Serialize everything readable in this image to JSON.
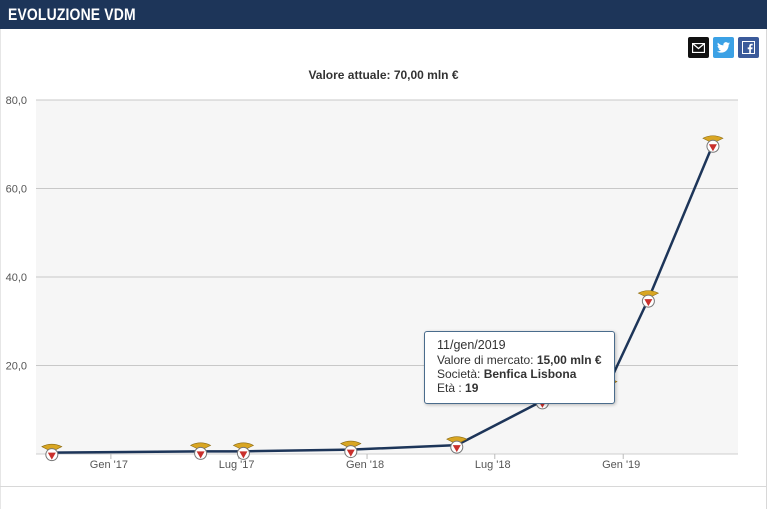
{
  "header": {
    "title": "EVOLUZIONE VDM"
  },
  "share": {
    "mail_icon": "envelope-icon",
    "twitter_icon": "twitter-icon",
    "facebook_icon": "facebook-icon"
  },
  "chart_data": {
    "type": "line",
    "title": "Valore attuale: 70,00 mln €",
    "xlabel": "",
    "ylabel": "",
    "ylim": [
      0,
      80
    ],
    "yticks": [
      "80,0",
      "60,0",
      "40,0",
      "20,0"
    ],
    "xticks": [
      "Gen '17",
      "Lug '17",
      "Gen '18",
      "Lug '18",
      "Gen '19"
    ],
    "grid": true,
    "line_color": "#1d3559",
    "points": [
      {
        "x": "2016-11",
        "y": 0.3
      },
      {
        "x": "2017-06",
        "y": 0.6
      },
      {
        "x": "2017-08",
        "y": 0.6
      },
      {
        "x": "2018-01",
        "y": 1.0
      },
      {
        "x": "2018-06",
        "y": 2.0
      },
      {
        "x": "2018-10",
        "y": 12.0
      },
      {
        "x": "2019-01",
        "y": 15.0
      },
      {
        "x": "2019-03",
        "y": 35.0
      },
      {
        "x": "2019-06",
        "y": 70.0
      }
    ]
  },
  "tooltip": {
    "date": "11/gen/2019",
    "value_label": "Valore di mercato: ",
    "value": "15,00 mln €",
    "club_label": "Società: ",
    "club": "Benfica Lisbona",
    "age_label": "Età : ",
    "age": "19"
  }
}
